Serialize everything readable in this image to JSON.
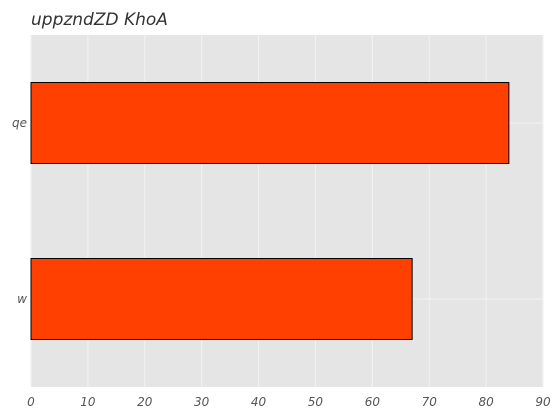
{
  "chart_data": {
    "type": "bar",
    "orientation": "horizontal",
    "title": "uppzndZD KhoA",
    "categories": [
      "qe",
      "w"
    ],
    "values": [
      84,
      67
    ],
    "xlabel": "",
    "ylabel": "",
    "xlim": [
      0,
      90
    ],
    "xticks": [
      "0",
      "10",
      "20",
      "30",
      "40",
      "50",
      "60",
      "70",
      "80",
      "90"
    ],
    "grid": true,
    "legend": "none",
    "colors": {
      "bar": "#ff4000",
      "bar_edge": "#000000",
      "plot_background": "#e5e5e5",
      "grid": "#f2f2f2",
      "tick_text": "#555555",
      "title_text": "#333333"
    }
  }
}
